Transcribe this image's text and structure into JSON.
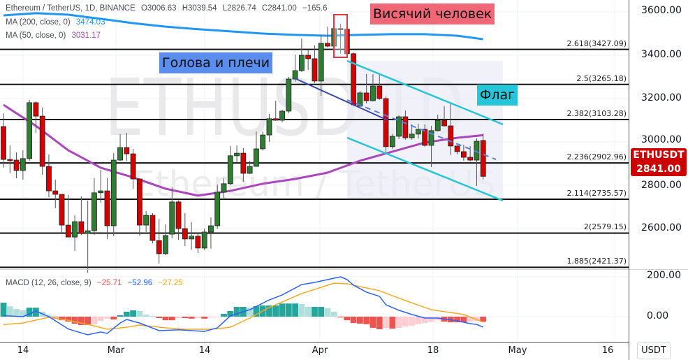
{
  "header": {
    "symbol": "Ethereum / TetherUS, 1D, BINANCE",
    "open": "O3006.63",
    "high": "H3039.54",
    "low": "L2826.74",
    "close": "C2841.00",
    "change": "−165.6"
  },
  "indicators": {
    "ma200": {
      "label": "MA (200, close, 0)",
      "value": "3474.03",
      "color": "#2196f3"
    },
    "ma50": {
      "label": "MA (50, close, 0)",
      "value": "3031.17",
      "color": "#ab47bc"
    },
    "macd": {
      "label": "MACD (12, 26, close, 9)",
      "histogram": "−25.71",
      "macd": "−52.96",
      "signal": "−27.25",
      "histogram_color": "#ef5350",
      "macd_color": "#2962ff",
      "signal_color": "#f9a825"
    }
  },
  "watermark": {
    "ticker": "ETHUSD 1D",
    "name": "Ethereum / TetherUS"
  },
  "annotations": {
    "head_shoulders": {
      "text": "Голова и плечи",
      "color": "#5b8def"
    },
    "hanging_man": {
      "text": "Висячий человек",
      "color": "#f06878"
    },
    "flag": {
      "text": "Флаг",
      "color": "#26c6da"
    }
  },
  "price_axis": {
    "currency": "USDT",
    "ticks": [
      "3600.00",
      "3400.00",
      "3200.00",
      "3000.00",
      "2800.00",
      "2600.00"
    ],
    "macd_ticks": [
      "200.00",
      "0.00"
    ],
    "last_symbol": "ETHUSDT",
    "last_price": "2841.00",
    "last_color": "#cc0000"
  },
  "time_axis": {
    "ticks": [
      "14",
      "Mar",
      "14",
      "Apr",
      "18",
      "May",
      "16"
    ]
  },
  "fib_levels": [
    {
      "ratio": "2.618",
      "price": 3427.09,
      "label": "2.618(3427.09)"
    },
    {
      "ratio": "2.5",
      "price": 3265.18,
      "label": "2.5(3265.18)"
    },
    {
      "ratio": "2.382",
      "price": 3103.28,
      "label": "2.382(3103.28)"
    },
    {
      "ratio": "2.236",
      "price": 2902.96,
      "label": "2.236(2902.96)"
    },
    {
      "ratio": "2.114",
      "price": 2735.57,
      "label": "2.114(2735.57)"
    },
    {
      "ratio": "2",
      "price": 2579.15,
      "label": "2(2579.15)"
    },
    {
      "ratio": "1.885",
      "price": 2421.37,
      "label": "1.885(2421.37)"
    }
  ],
  "chart_data": {
    "type": "candlestick",
    "price_range": [
      2380,
      3620
    ],
    "colors": {
      "up": "#2e7d32",
      "down": "#d50000"
    },
    "candles_ohlc": [
      [
        3071,
        3132,
        2881,
        2919
      ],
      [
        2919,
        2984,
        2855,
        2913
      ],
      [
        2916,
        2952,
        2832,
        2868
      ],
      [
        2868,
        2961,
        2826,
        2923
      ],
      [
        2923,
        3194,
        2913,
        3181
      ],
      [
        3181,
        3187,
        3042,
        3119
      ],
      [
        3119,
        3158,
        2848,
        2887
      ],
      [
        2887,
        2942,
        2745,
        2774
      ],
      [
        2774,
        2826,
        2694,
        2758
      ],
      [
        2758,
        2755,
        2574,
        2616
      ],
      [
        2616,
        2755,
        2560,
        2561
      ],
      [
        2561,
        2661,
        2497,
        2632
      ],
      [
        2632,
        2749,
        2570,
        2577
      ],
      [
        2577,
        2729,
        2397,
        2590
      ],
      [
        2590,
        2832,
        2571,
        2765
      ],
      [
        2765,
        2871,
        2719,
        2774
      ],
      [
        2774,
        2832,
        2552,
        2613
      ],
      [
        2613,
        2948,
        2565,
        2916
      ],
      [
        2916,
        3036,
        2913,
        2974
      ],
      [
        2974,
        3042,
        2913,
        2945
      ],
      [
        2945,
        2968,
        2784,
        2829
      ],
      [
        2829,
        2832,
        2568,
        2616
      ],
      [
        2616,
        2681,
        2584,
        2661
      ],
      [
        2661,
        2671,
        2532,
        2545
      ],
      [
        2545,
        2645,
        2439,
        2484
      ],
      [
        2484,
        2619,
        2477,
        2568
      ],
      [
        2574,
        2790,
        2555,
        2723
      ],
      [
        2723,
        2730,
        2548,
        2600
      ],
      [
        2600,
        2671,
        2519,
        2552
      ],
      [
        2552,
        2629,
        2503,
        2565
      ],
      [
        2565,
        2578,
        2487,
        2510
      ],
      [
        2510,
        2600,
        2500,
        2584
      ],
      [
        2584,
        2652,
        2507,
        2613
      ],
      [
        2613,
        2803,
        2600,
        2768
      ],
      [
        2768,
        2832,
        2742,
        2807
      ],
      [
        2807,
        2981,
        2800,
        2936
      ],
      [
        2936,
        2984,
        2907,
        2948
      ],
      [
        2948,
        2971,
        2816,
        2855
      ],
      [
        2855,
        2913,
        2852,
        2887
      ],
      [
        2887,
        3048,
        2903,
        2968
      ],
      [
        2968,
        3048,
        2960,
        3032
      ],
      [
        3032,
        3129,
        3000,
        3107
      ],
      [
        3107,
        3190,
        3097,
        3100
      ],
      [
        3100,
        3148,
        3090,
        3142
      ],
      [
        3142,
        3300,
        3132,
        3290
      ],
      [
        3290,
        3403,
        3278,
        3329
      ],
      [
        3329,
        3477,
        3323,
        3400
      ],
      [
        3400,
        3423,
        3332,
        3384
      ],
      [
        3384,
        3445,
        3271,
        3281
      ],
      [
        3281,
        3494,
        3213,
        3455
      ],
      [
        3455,
        3532,
        3436,
        3442
      ],
      [
        3442,
        3536,
        3436,
        3523
      ],
      [
        3523,
        3545,
        3407,
        3520
      ],
      [
        3520,
        3526,
        3403,
        3407
      ],
      [
        3407,
        3413,
        3165,
        3171
      ],
      [
        3165,
        3236,
        3161,
        3226
      ],
      [
        3226,
        3313,
        3178,
        3190
      ],
      [
        3190,
        3313,
        3187,
        3258
      ],
      [
        3258,
        3313,
        3194,
        3200
      ],
      [
        3200,
        3210,
        2952,
        2978
      ],
      [
        2978,
        3036,
        2968,
        3026
      ],
      [
        3026,
        3123,
        3013,
        3116
      ],
      [
        3116,
        3145,
        3010,
        3019
      ],
      [
        3019,
        3081,
        3010,
        3036
      ],
      [
        3036,
        3084,
        3016,
        3058
      ],
      [
        3058,
        3081,
        2978,
        2984
      ],
      [
        2984,
        3074,
        2884,
        3052
      ],
      [
        3052,
        3126,
        3048,
        3100
      ],
      [
        3100,
        3165,
        3071,
        3074
      ],
      [
        3074,
        3178,
        2939,
        2981
      ],
      [
        2981,
        2984,
        2942,
        2955
      ],
      [
        2955,
        2987,
        2913,
        2929
      ],
      [
        2929,
        2981,
        2910,
        2916
      ],
      [
        2916,
        3016,
        2797,
        3003
      ],
      [
        3006.63,
        3039.54,
        2826.74,
        2841.0
      ]
    ],
    "ma200_points": [
      [
        0,
        3584
      ],
      [
        5,
        3594
      ],
      [
        10,
        3587
      ],
      [
        15,
        3568
      ],
      [
        20,
        3548
      ],
      [
        25,
        3532
      ],
      [
        30,
        3520
      ],
      [
        35,
        3510
      ],
      [
        40,
        3500
      ],
      [
        45,
        3494
      ],
      [
        50,
        3490
      ],
      [
        55,
        3494
      ],
      [
        60,
        3497
      ],
      [
        65,
        3497
      ],
      [
        70,
        3490
      ],
      [
        74,
        3474.03
      ]
    ],
    "ma50_points": [
      [
        0,
        3171
      ],
      [
        5,
        3074
      ],
      [
        10,
        2961
      ],
      [
        15,
        2881
      ],
      [
        20,
        2836
      ],
      [
        25,
        2784
      ],
      [
        30,
        2752
      ],
      [
        35,
        2774
      ],
      [
        40,
        2807
      ],
      [
        45,
        2829
      ],
      [
        50,
        2858
      ],
      [
        55,
        2913
      ],
      [
        60,
        2955
      ],
      [
        65,
        2997
      ],
      [
        70,
        3019
      ],
      [
        74,
        3031.17
      ]
    ],
    "macd_range": [
      -120,
      240
    ],
    "macd_histogram": [
      70,
      52,
      38,
      32,
      45,
      45,
      25,
      7,
      -4,
      -18,
      -25,
      -35,
      -42,
      -42,
      -38,
      -21,
      -10,
      -14,
      7,
      25,
      32,
      28,
      10,
      4,
      -7,
      -18,
      -18,
      -7,
      -7,
      -10,
      -7,
      -10,
      -3,
      -2,
      14,
      28,
      49,
      49,
      45,
      52,
      56,
      56,
      56,
      66,
      66,
      66,
      63,
      49,
      49,
      49,
      42,
      25,
      -4,
      -18,
      -32,
      -35,
      -38,
      -56,
      -63,
      -56,
      -60,
      -56,
      -49,
      -45,
      -38,
      -32,
      -25,
      -18,
      -25,
      -28,
      -28,
      -28,
      -25,
      -22,
      -25.71
    ],
    "macd_line_points": [
      [
        0,
        5
      ],
      [
        3,
        0
      ],
      [
        5,
        28
      ],
      [
        7,
        0
      ],
      [
        10,
        -62
      ],
      [
        13,
        -91
      ],
      [
        15,
        -77
      ],
      [
        16,
        -84
      ],
      [
        18,
        -32
      ],
      [
        19,
        -14
      ],
      [
        21,
        -32
      ],
      [
        24,
        -70
      ],
      [
        27,
        -66
      ],
      [
        31,
        -74
      ],
      [
        33,
        -56
      ],
      [
        35,
        4
      ],
      [
        38,
        35
      ],
      [
        41,
        84
      ],
      [
        43,
        109
      ],
      [
        46,
        161
      ],
      [
        48,
        172
      ],
      [
        50,
        186
      ],
      [
        52,
        200
      ],
      [
        53,
        186
      ],
      [
        54,
        158
      ],
      [
        56,
        123
      ],
      [
        58,
        102
      ],
      [
        59,
        60
      ],
      [
        61,
        32
      ],
      [
        63,
        11
      ],
      [
        65,
        -7
      ],
      [
        67,
        -7
      ],
      [
        70,
        -21
      ],
      [
        72,
        -35
      ],
      [
        73,
        -39
      ],
      [
        74,
        -52.96
      ]
    ],
    "signal_line_points": [
      [
        0,
        -40
      ],
      [
        3,
        -32
      ],
      [
        6,
        -10
      ],
      [
        7,
        -4
      ],
      [
        10,
        -18
      ],
      [
        14,
        -46
      ],
      [
        16,
        -63
      ],
      [
        19,
        -53
      ],
      [
        21,
        -42
      ],
      [
        25,
        -56
      ],
      [
        28,
        -63
      ],
      [
        32,
        -63
      ],
      [
        35,
        -53
      ],
      [
        38,
        -7
      ],
      [
        41,
        46
      ],
      [
        46,
        116
      ],
      [
        51,
        168
      ],
      [
        53,
        165
      ],
      [
        58,
        130
      ],
      [
        62,
        81
      ],
      [
        66,
        35
      ],
      [
        71,
        11
      ],
      [
        74,
        -27.25
      ]
    ]
  }
}
